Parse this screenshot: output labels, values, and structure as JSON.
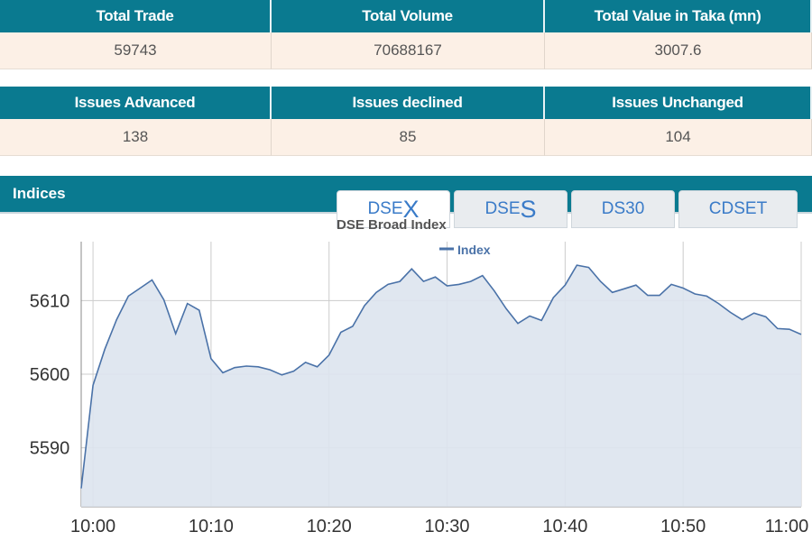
{
  "tables": [
    {
      "headers": [
        "Total Trade",
        "Total Volume",
        "Total Value in Taka (mn)"
      ],
      "values": [
        59743,
        70688167,
        3007.6
      ]
    },
    {
      "headers": [
        "Issues Advanced",
        "Issues declined",
        "Issues Unchanged"
      ],
      "values": [
        138,
        85,
        104
      ]
    }
  ],
  "section_title": "Indices",
  "tabs": [
    [
      "DSE",
      "X"
    ],
    [
      "DSE",
      "S"
    ],
    [
      "DS30"
    ],
    [
      "CDSET"
    ]
  ],
  "chart_data": {
    "type": "area",
    "title": "DSE Broad Index",
    "x": [
      "09:59",
      "10:00",
      "10:01",
      "10:02",
      "10:03",
      "10:04",
      "10:05",
      "10:06",
      "10:07",
      "10:08",
      "10:09",
      "10:10",
      "10:11",
      "10:12",
      "10:13",
      "10:14",
      "10:15",
      "10:16",
      "10:17",
      "10:18",
      "10:19",
      "10:20",
      "10:21",
      "10:22",
      "10:23",
      "10:24",
      "10:25",
      "10:26",
      "10:27",
      "10:28",
      "10:29",
      "10:30",
      "10:31",
      "10:32",
      "10:33",
      "10:34",
      "10:35",
      "10:36",
      "10:37",
      "10:38",
      "10:39",
      "10:40",
      "10:41",
      "10:42",
      "10:43",
      "10:44",
      "10:45",
      "10:46",
      "10:47",
      "10:48",
      "10:49",
      "10:50",
      "10:51",
      "10:52",
      "10:53",
      "10:54",
      "10:55",
      "10:56",
      "10:57",
      "10:58",
      "10:59",
      "11:00"
    ],
    "series": [
      {
        "name": "Index",
        "color": "#4a72a8",
        "values": [
          5584.5,
          5598.5,
          5603.4,
          5607.4,
          5610.6,
          5611.7,
          5612.8,
          5610.1,
          5605.5,
          5609.6,
          5608.7,
          5602.1,
          5600.2,
          5600.9,
          5601.1,
          5601.0,
          5600.6,
          5599.9,
          5600.4,
          5601.6,
          5601.0,
          5602.6,
          5605.7,
          5606.5,
          5609.3,
          5611.1,
          5612.2,
          5612.6,
          5614.3,
          5612.6,
          5613.2,
          5612.0,
          5612.2,
          5612.6,
          5613.4,
          5611.3,
          5608.9,
          5606.9,
          5607.9,
          5607.3,
          5610.4,
          5612.1,
          5614.8,
          5614.5,
          5612.6,
          5611.1,
          5611.6,
          5612.1,
          5610.7,
          5610.7,
          5612.2,
          5611.7,
          5610.9,
          5610.6,
          5609.6,
          5608.4,
          5607.4,
          5608.3,
          5607.8,
          5606.2,
          5606.1,
          5605.4
        ]
      }
    ],
    "xlim": [
      "09:59",
      "11:00"
    ],
    "xticks": [
      "10:00",
      "10:10",
      "10:20",
      "10:30",
      "10:40",
      "10:50",
      "11:00"
    ],
    "ylim": [
      5582,
      5618
    ],
    "yticks": [
      5590,
      5600,
      5610
    ],
    "grid": true
  }
}
